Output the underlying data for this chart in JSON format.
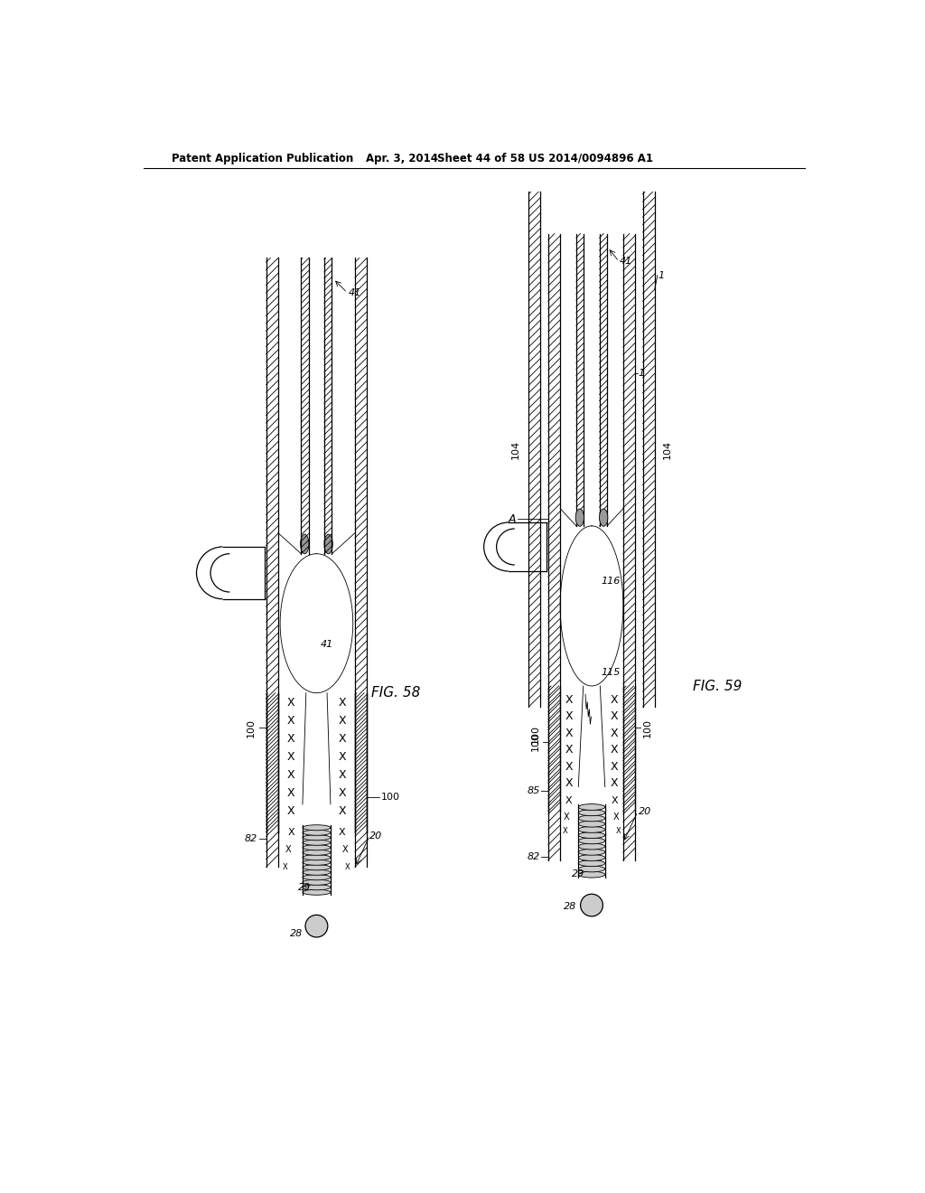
{
  "background_color": "#ffffff",
  "header_text": "Patent Application Publication",
  "header_date": "Apr. 3, 2014",
  "header_sheet": "Sheet 44 of 58",
  "header_patent": "US 2014/0094896 A1",
  "fig58_label": "FIG. 58",
  "fig59_label": "FIG. 59",
  "line_color": "#000000",
  "gray_fill": "#aaaaaa",
  "dot_fill": "#bbbbbb"
}
